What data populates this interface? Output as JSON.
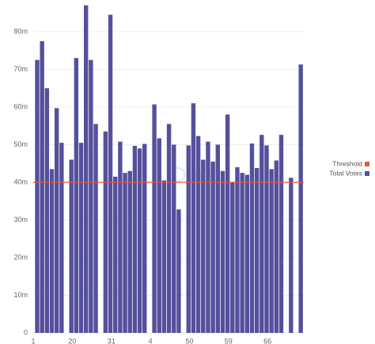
{
  "chart_data": {
    "type": "bar",
    "watermark": "Dune",
    "categories": [
      "1",
      null,
      null,
      null,
      null,
      null,
      null,
      null,
      "20",
      null,
      null,
      null,
      null,
      null,
      null,
      null,
      "31",
      null,
      null,
      null,
      null,
      null,
      null,
      null,
      "4",
      null,
      null,
      null,
      null,
      null,
      null,
      null,
      "50",
      null,
      null,
      null,
      null,
      null,
      null,
      null,
      "59",
      null,
      null,
      null,
      null,
      null,
      null,
      null,
      "66",
      null,
      null,
      null,
      null,
      null,
      null
    ],
    "series": [
      {
        "name": "Total Votes",
        "color": "#55509c",
        "values": [
          72.5,
          77.5,
          65,
          43.5,
          59.7,
          50.5,
          null,
          46,
          73,
          50.5,
          87,
          72.5,
          55.5,
          null,
          53.5,
          84.5,
          41.5,
          50.8,
          42.5,
          43,
          49.7,
          49,
          50.2,
          null,
          60.7,
          51.7,
          40.5,
          55.5,
          50,
          32.8,
          null,
          49.8,
          61,
          52.3,
          46,
          50.8,
          45.5,
          50,
          43,
          58,
          40,
          44,
          42.5,
          42,
          50.3,
          43.8,
          52.6,
          49.8,
          43.5,
          45.8,
          52.6,
          null,
          41.2,
          null,
          71.3
        ]
      }
    ],
    "threshold": {
      "name": "Threshold",
      "value": 40,
      "color": "#e8563f"
    },
    "ylim": [
      0,
      88
    ],
    "yticks": [
      0,
      {
        "value": 10,
        "label": "10m"
      },
      {
        "value": 20,
        "label": "20m"
      },
      {
        "value": 30,
        "label": "30m"
      },
      {
        "value": 40,
        "label": "40m"
      },
      {
        "value": 50,
        "label": "50m"
      },
      {
        "value": 60,
        "label": "60m"
      },
      {
        "value": 70,
        "label": "70m"
      },
      {
        "value": 80,
        "label": "80m"
      }
    ],
    "grid": true
  }
}
